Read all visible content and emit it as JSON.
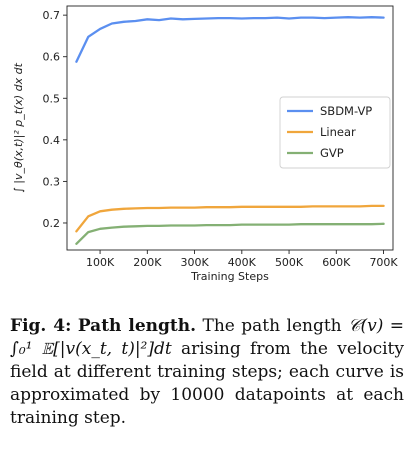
{
  "chart_data": {
    "type": "line",
    "xlabel": "Training Steps",
    "ylabel": "∫ |v_θ(x,t)|² p_t(x) dx dt",
    "x": [
      50000,
      75000,
      100000,
      125000,
      150000,
      175000,
      200000,
      225000,
      250000,
      275000,
      300000,
      325000,
      350000,
      375000,
      400000,
      425000,
      450000,
      475000,
      500000,
      525000,
      550000,
      575000,
      600000,
      625000,
      650000,
      675000,
      700000
    ],
    "xticks": [
      100000,
      200000,
      300000,
      400000,
      500000,
      600000,
      700000
    ],
    "xtick_labels": [
      "100K",
      "200K",
      "300K",
      "400K",
      "500K",
      "600K",
      "700K"
    ],
    "yticks": [
      0.2,
      0.3,
      0.4,
      0.5,
      0.6,
      0.7
    ],
    "ytick_labels": [
      "0.2",
      "0.3",
      "0.4",
      "0.5",
      "0.6",
      "0.7"
    ],
    "xlim": [
      30000,
      720000
    ],
    "ylim": [
      0.135,
      0.722
    ],
    "grid": false,
    "legend_position": "center-right",
    "series": [
      {
        "name": "SBDM-VP",
        "color": "#5b8ff0",
        "values": [
          0.588,
          0.648,
          0.667,
          0.68,
          0.684,
          0.686,
          0.69,
          0.688,
          0.692,
          0.69,
          0.691,
          0.692,
          0.693,
          0.693,
          0.692,
          0.693,
          0.693,
          0.694,
          0.692,
          0.694,
          0.694,
          0.693,
          0.694,
          0.695,
          0.694,
          0.695,
          0.694
        ]
      },
      {
        "name": "Linear",
        "color": "#f0a63c",
        "values": [
          0.18,
          0.216,
          0.228,
          0.232,
          0.234,
          0.235,
          0.236,
          0.236,
          0.237,
          0.237,
          0.237,
          0.238,
          0.238,
          0.238,
          0.239,
          0.239,
          0.239,
          0.239,
          0.239,
          0.239,
          0.24,
          0.24,
          0.24,
          0.24,
          0.24,
          0.241,
          0.241
        ]
      },
      {
        "name": "GVP",
        "color": "#84b074",
        "values": [
          0.15,
          0.178,
          0.186,
          0.189,
          0.191,
          0.192,
          0.193,
          0.193,
          0.194,
          0.194,
          0.194,
          0.195,
          0.195,
          0.195,
          0.196,
          0.196,
          0.196,
          0.196,
          0.196,
          0.197,
          0.197,
          0.197,
          0.197,
          0.197,
          0.197,
          0.197,
          0.198
        ]
      }
    ]
  },
  "caption": {
    "fig_label": "Fig. 4:",
    "title": "Path length.",
    "text_1": "The path length",
    "formula": "𝒞(v) = ∫₀¹ 𝔼[|v(x_t, t)|²]dt",
    "text_2": "arising from the velocity field at different training steps; each curve is approximated by 10000 datapoints at each training step."
  }
}
